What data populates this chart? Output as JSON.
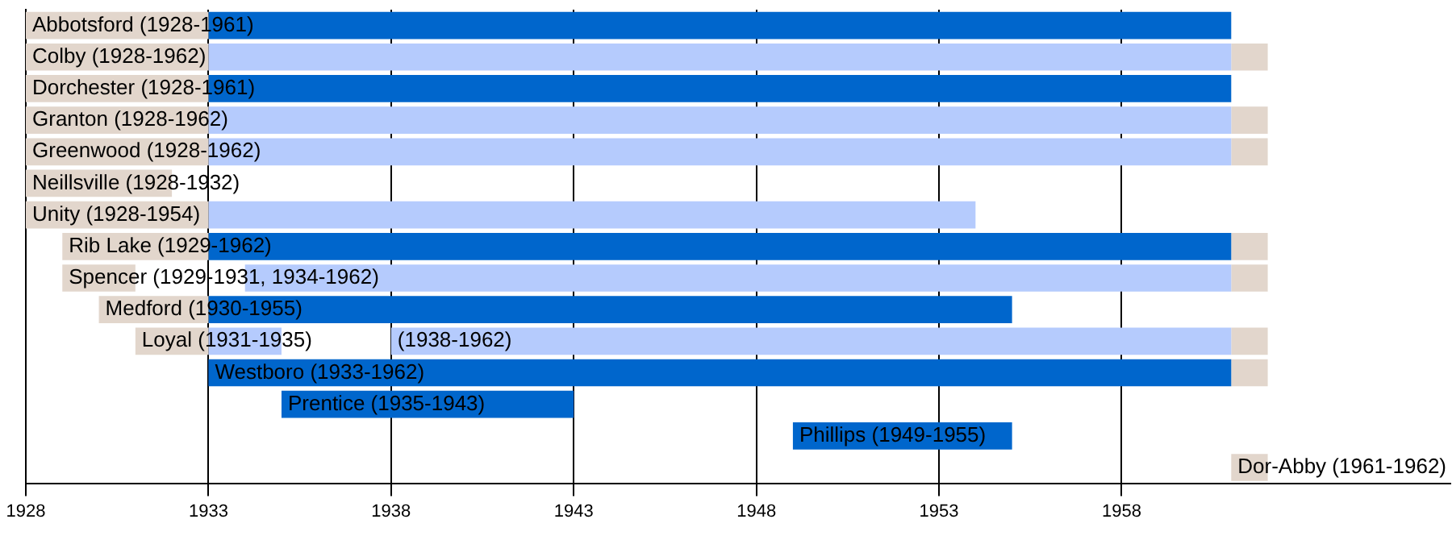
{
  "chart_data": {
    "type": "bar",
    "orientation": "horizontal",
    "categories": [
      null,
      null,
      null,
      null,
      null,
      null,
      null,
      null,
      null,
      null,
      null,
      null,
      null,
      null,
      null
    ],
    "series": [
      {
        "color": "#e2d6cc",
        "base": [
          1928,
          1928,
          1928,
          1928,
          1928,
          1928,
          1928,
          1929,
          1929,
          1930,
          1931,
          null,
          null,
          null,
          1961
        ],
        "values": [
          5,
          5,
          5,
          5,
          5,
          4,
          5,
          4,
          2,
          3,
          2,
          null,
          null,
          null,
          1
        ],
        "value_labels": [
          "Abbotsford (1928-1961)",
          "Colby (1928-1962)",
          "Dorchester (1928-1961)",
          "Granton (1928-1962)",
          "Greenwood (1928-1962)",
          "Neillsville (1928-1932)",
          "Unity (1928-1954)",
          "Rib Lake (1929-1962)",
          "Spencer (1929-1931, 1934-1962)",
          "Medford (1930-1955)",
          "Loyal (1931-1935)",
          null,
          null,
          null,
          "Dor-Abby (1961-1962)"
        ]
      },
      {
        "color": "#0066cc",
        "base": [
          1933,
          null,
          1933,
          null,
          null,
          null,
          null,
          1933,
          null,
          1933,
          null,
          1933,
          1935,
          1949,
          null
        ],
        "values": [
          28,
          null,
          28,
          null,
          null,
          null,
          null,
          28,
          null,
          22,
          null,
          28,
          8,
          6,
          null
        ],
        "value_labels": [
          null,
          null,
          null,
          null,
          null,
          null,
          null,
          null,
          null,
          null,
          null,
          "Westboro (1933-1962)",
          "Prentice (1935-1943)",
          "Phillips (1949-1955)",
          null
        ]
      },
      {
        "color": "#b5cbfd",
        "base": [
          null,
          1933,
          null,
          1933,
          1933,
          null,
          1933,
          null,
          1934,
          null,
          1933,
          null,
          null,
          null,
          null
        ],
        "values": [
          null,
          28,
          null,
          28,
          28,
          null,
          21,
          null,
          27,
          null,
          2,
          null,
          null,
          null,
          null
        ]
      },
      {
        "color": "#b5cbfd",
        "base": [
          null,
          null,
          null,
          null,
          null,
          null,
          null,
          null,
          null,
          null,
          1938,
          null,
          null,
          null,
          null
        ],
        "values": [
          null,
          null,
          null,
          null,
          null,
          null,
          null,
          null,
          null,
          null,
          23,
          null,
          null,
          null,
          null
        ],
        "value_labels": [
          null,
          null,
          null,
          null,
          null,
          null,
          null,
          null,
          null,
          null,
          "(1938-1962)",
          null,
          null,
          null,
          null
        ]
      },
      {
        "color": "#e2d6cc",
        "base": [
          null,
          1961,
          null,
          1961,
          1961,
          null,
          null,
          1961,
          1961,
          null,
          1961,
          1961,
          null,
          null,
          null
        ],
        "values": [
          null,
          1,
          null,
          1,
          1,
          null,
          null,
          1,
          1,
          null,
          1,
          1,
          null,
          null,
          null
        ]
      }
    ],
    "xlim": [
      1928,
      1967
    ],
    "xticks": [
      1928,
      1933,
      1938,
      1943,
      1948,
      1953,
      1958
    ],
    "grid": "x"
  }
}
